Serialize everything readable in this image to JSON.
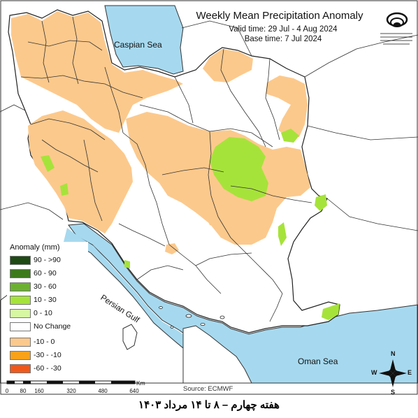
{
  "title": "Weekly Mean Precipitation Anomaly",
  "valid_time": "Valid time: 29 Jul - 4 Aug 2024",
  "base_time": "Base time: 7 Jul 2024",
  "labels": {
    "caspian": "Caspian Sea",
    "persian_gulf": "Persian Gulf",
    "oman": "Oman Sea"
  },
  "legend": {
    "title": "Anomaly (mm)",
    "items": [
      {
        "label": "90 - >90",
        "color": "#1f4a14"
      },
      {
        "label": "60 - 90",
        "color": "#3d7a1c"
      },
      {
        "label": "30 - 60",
        "color": "#6cb031"
      },
      {
        "label": "10 - 30",
        "color": "#a6e33a"
      },
      {
        "label": "0 - 10",
        "color": "#d7f7a3"
      },
      {
        "label": "No Change",
        "color": "#ffffff"
      },
      {
        "label": "-10 - 0",
        "color": "#fcc98c"
      },
      {
        "label": "-30 - -10",
        "color": "#f7a21a"
      },
      {
        "label": "-60 - -30",
        "color": "#f0581a"
      }
    ]
  },
  "scale_bar": {
    "unit": "Km",
    "ticks": [
      "0",
      "80",
      "160",
      "320",
      "480",
      "640"
    ]
  },
  "compass": {
    "n": "N",
    "s": "S",
    "e": "E",
    "w": "W"
  },
  "source": "Source: ECMWF",
  "footer": "هفته چهارم – ۸ تا ۱۴ مرداد ۱۴۰۳",
  "colors": {
    "water": "#a6d9ef",
    "land": "#ffffff",
    "dry": "#fcc98c",
    "wet": "#a6e33a",
    "wet_light": "#d7f7a3",
    "border": "#333333"
  }
}
